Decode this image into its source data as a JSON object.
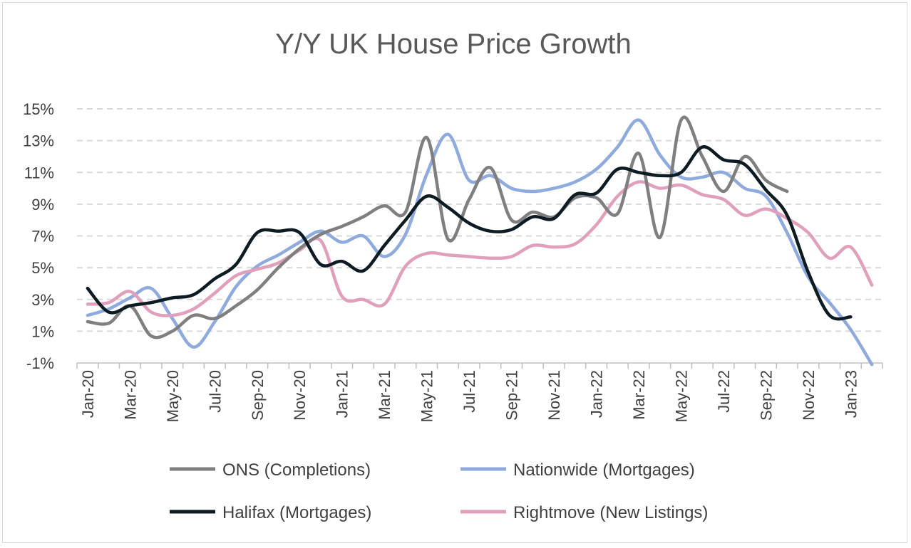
{
  "chart_data": {
    "type": "line",
    "title": "Y/Y UK House Price Growth",
    "xlabel": "",
    "ylabel": "",
    "ylim": [
      -1,
      15
    ],
    "yticks": [
      "15%",
      "13%",
      "11%",
      "9%",
      "7%",
      "5%",
      "3%",
      "1%",
      "-1%"
    ],
    "grid": "horizontal dashed",
    "legend_position": "bottom",
    "x": [
      "Jan-20",
      "Feb-20",
      "Mar-20",
      "Apr-20",
      "May-20",
      "Jun-20",
      "Jul-20",
      "Aug-20",
      "Sep-20",
      "Oct-20",
      "Nov-20",
      "Dec-20",
      "Jan-21",
      "Feb-21",
      "Mar-21",
      "Apr-21",
      "May-21",
      "Jun-21",
      "Jul-21",
      "Aug-21",
      "Sep-21",
      "Oct-21",
      "Nov-21",
      "Dec-21",
      "Jan-22",
      "Feb-22",
      "Mar-22",
      "Apr-22",
      "May-22",
      "Jun-22",
      "Jul-22",
      "Aug-22",
      "Sep-22",
      "Oct-22",
      "Nov-22",
      "Dec-22",
      "Jan-23",
      "Feb-23"
    ],
    "xtick_labels": [
      "Jan-20",
      "Mar-20",
      "May-20",
      "Jul-20",
      "Sep-20",
      "Nov-20",
      "Jan-21",
      "Mar-21",
      "May-21",
      "Jul-21",
      "Sep-21",
      "Nov-21",
      "Jan-22",
      "Mar-22",
      "May-22",
      "Jul-22",
      "Sep-22",
      "Nov-22",
      "Jan-23"
    ],
    "series": [
      {
        "name": "ONS (Completions)",
        "color": "#7f7f7f",
        "values": [
          1.6,
          1.5,
          2.6,
          0.7,
          1.0,
          2.0,
          1.8,
          2.6,
          3.6,
          5.0,
          6.2,
          7.1,
          7.6,
          8.2,
          8.9,
          8.5,
          13.2,
          6.8,
          9.3,
          11.3,
          8.0,
          8.5,
          8.2,
          9.4,
          9.4,
          8.4,
          12.2,
          6.9,
          14.3,
          12.0,
          9.8,
          12.0,
          10.5,
          9.8,
          null,
          null,
          null,
          null
        ]
      },
      {
        "name": "Nationwide (Mortgages)",
        "color": "#8faadc",
        "values": [
          2.0,
          2.4,
          3.1,
          3.7,
          1.8,
          0.0,
          1.6,
          3.8,
          5.1,
          5.8,
          6.6,
          7.3,
          6.6,
          7.0,
          5.7,
          7.1,
          10.9,
          13.4,
          10.5,
          10.8,
          10.0,
          9.8,
          10.0,
          10.4,
          11.2,
          12.6,
          14.3,
          12.1,
          10.7,
          10.7,
          11.0,
          10.0,
          9.5,
          7.2,
          4.4,
          2.8,
          1.1,
          -1.1
        ]
      },
      {
        "name": "Halifax (Mortgages)",
        "color": "#0d1b22",
        "values": [
          3.7,
          2.2,
          2.6,
          2.8,
          3.1,
          3.3,
          4.3,
          5.2,
          7.2,
          7.3,
          7.2,
          5.2,
          5.4,
          4.8,
          6.4,
          8.0,
          9.5,
          8.8,
          7.8,
          7.3,
          7.4,
          8.2,
          8.1,
          9.6,
          9.7,
          11.2,
          11.0,
          10.8,
          11.0,
          12.6,
          11.8,
          11.5,
          9.9,
          8.3,
          4.7,
          2.0,
          1.9,
          null
        ]
      },
      {
        "name": "Rightmove (New Listings)",
        "color": "#e0a0bc",
        "values": [
          2.7,
          2.8,
          3.5,
          2.2,
          2.0,
          2.4,
          3.4,
          4.5,
          4.9,
          5.3,
          6.1,
          6.7,
          3.2,
          3.0,
          2.7,
          5.1,
          5.9,
          5.8,
          5.7,
          5.6,
          5.7,
          6.4,
          6.3,
          6.5,
          7.7,
          9.5,
          10.4,
          10.0,
          10.2,
          9.6,
          9.3,
          8.3,
          8.7,
          8.1,
          7.2,
          5.6,
          6.3,
          3.9
        ]
      }
    ]
  }
}
